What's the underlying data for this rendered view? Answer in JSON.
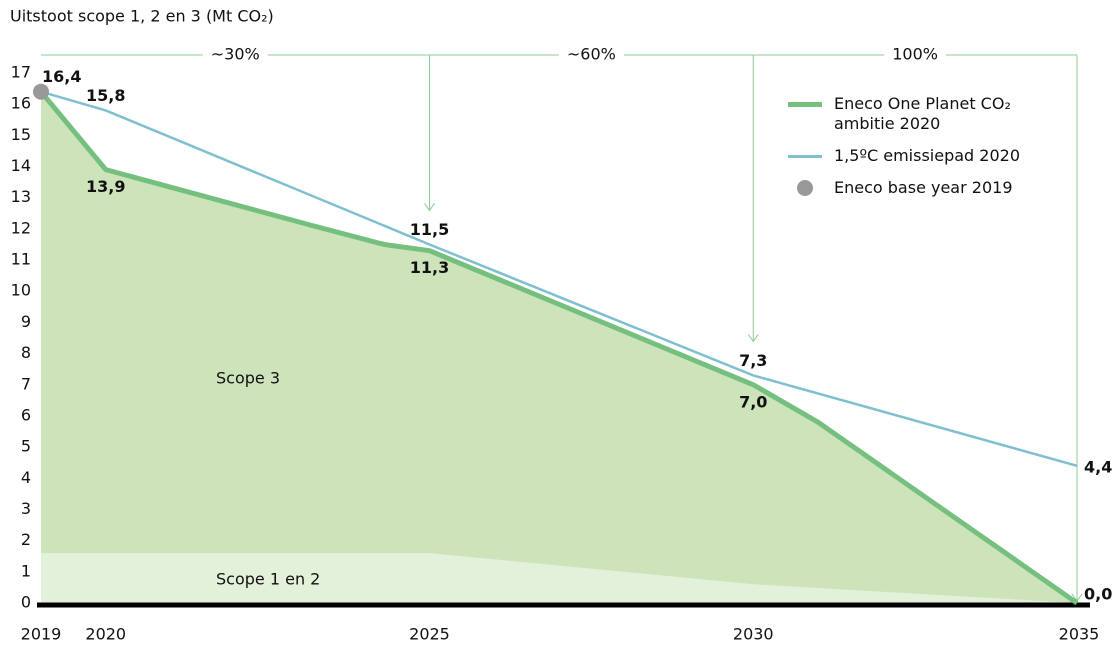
{
  "chart_data": {
    "type": "line",
    "title": "Uitstoot scope 1, 2 en 3 (Mt CO₂)",
    "xlim": [
      2019,
      2035
    ],
    "xticks": [
      2019,
      2020,
      2025,
      2030,
      2035
    ],
    "ylim": [
      0,
      17
    ],
    "yticks": [
      0,
      1,
      2,
      3,
      4,
      5,
      6,
      7,
      8,
      9,
      10,
      11,
      12,
      13,
      14,
      15,
      16,
      17
    ],
    "series": [
      {
        "name": "Eneco One Planet CO₂ ambitie 2020",
        "type": "line",
        "color": "#76c07f",
        "x": [
          2019,
          2020,
          2023.2,
          2024.3,
          2025,
          2030,
          2031,
          2035
        ],
        "values": [
          16.4,
          13.9,
          12.1,
          11.5,
          11.3,
          7.0,
          5.8,
          0.0
        ],
        "value_labels": [
          null,
          "13,9",
          null,
          null,
          "11,3",
          "7,0",
          null,
          "0,0"
        ]
      },
      {
        "name": "1,5ºC emissiepad 2020",
        "type": "line",
        "color": "#7fbfd0",
        "x": [
          2019,
          2020,
          2025,
          2030,
          2035
        ],
        "values": [
          16.4,
          15.8,
          11.5,
          7.3,
          4.4
        ],
        "value_labels": [
          null,
          "15,8",
          "11,5",
          "7,3",
          "4,4"
        ]
      },
      {
        "name": "Eneco base year 2019",
        "type": "point",
        "color": "#999999",
        "x": [
          2019
        ],
        "values": [
          16.4
        ],
        "value_labels": [
          "16,4"
        ]
      }
    ],
    "areas": [
      {
        "label": "Scope 3",
        "color": "#cde4bb",
        "under_series": 0
      },
      {
        "label": "Scope 1 en 2",
        "color": "#e4f1da",
        "x": [
          2019,
          2025,
          2030,
          2035
        ],
        "values": [
          1.6,
          1.6,
          0.6,
          0.0
        ]
      }
    ],
    "phases": [
      {
        "label": "~30%",
        "from": 2019,
        "to": 2025
      },
      {
        "label": "~60%",
        "from": 2025,
        "to": 2030
      },
      {
        "label": "100%",
        "from": 2030,
        "to": 2035
      }
    ]
  }
}
